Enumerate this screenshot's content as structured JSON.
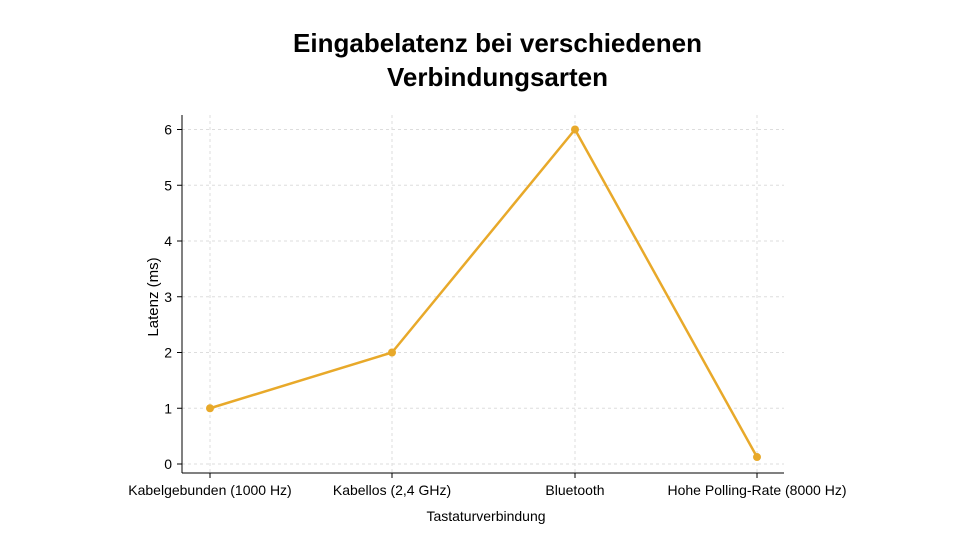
{
  "chart_data": {
    "type": "line",
    "title_lines": [
      "Eingabelatenz bei verschiedenen",
      "Verbindungsarten"
    ],
    "xlabel": "Tastaturverbindung",
    "ylabel": "Latenz (ms)",
    "categories": [
      "Kabelgebunden (1000 Hz)",
      "Kabellos (2,4 GHz)",
      "Bluetooth",
      "Hohe Polling-Rate (8000 Hz)"
    ],
    "values": [
      1,
      2,
      6,
      0.125
    ],
    "yticks": [
      0,
      1,
      2,
      3,
      4,
      5,
      6
    ],
    "ylim": [
      -0.125,
      6.3
    ],
    "grid": true,
    "color": "#E8A92A"
  }
}
